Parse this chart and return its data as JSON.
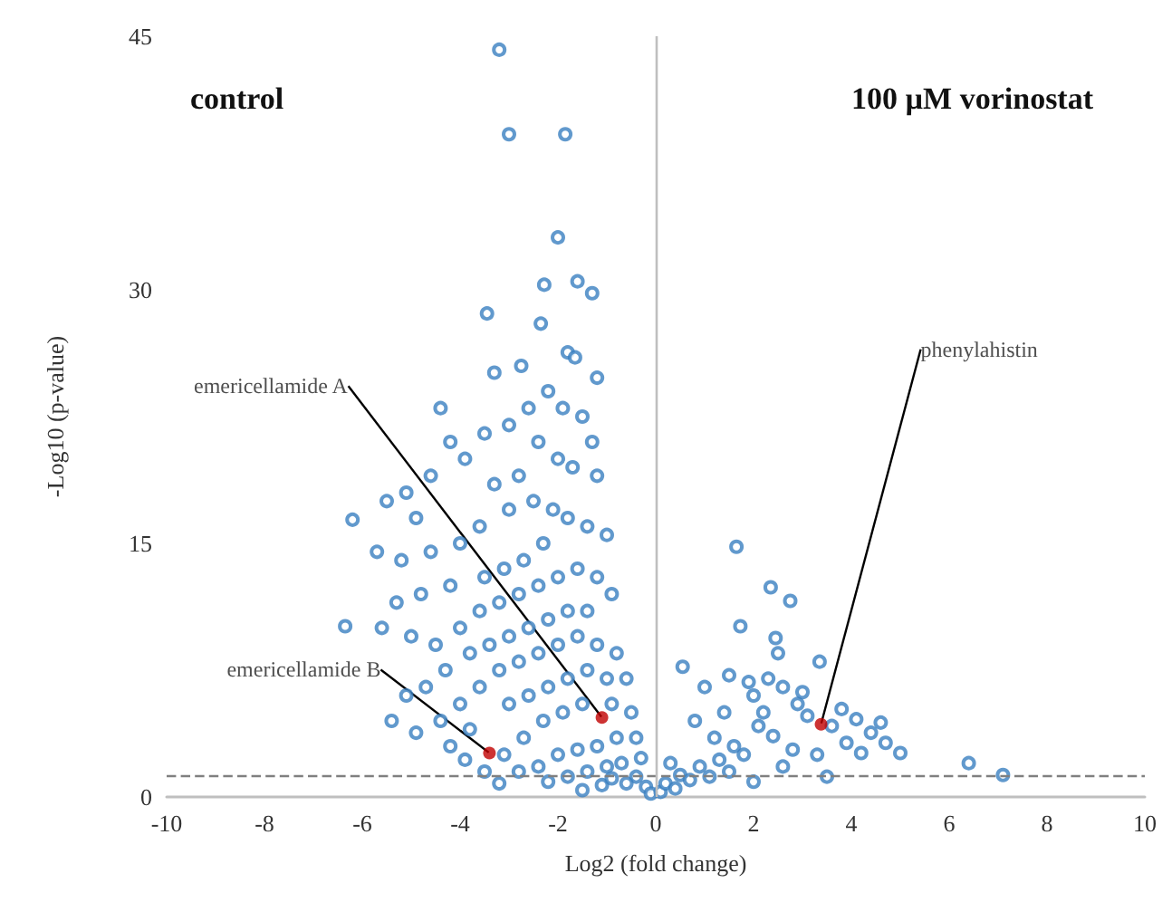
{
  "chart_data": {
    "type": "scatter",
    "xlabel": "Log2 (fold change)",
    "ylabel": "-Log10 (p-value)",
    "xlim": [
      -10,
      10
    ],
    "xticks": [
      -10,
      -8,
      -6,
      -4,
      -2,
      0,
      2,
      4,
      6,
      8,
      10
    ],
    "ylim": [
      0,
      45
    ],
    "yticks": [
      0,
      15,
      30,
      45
    ],
    "grid": false,
    "marker": "circle",
    "series": [
      {
        "color": "#3a7fc0",
        "x": [
          -3.2,
          -3.0,
          -1.85,
          -2.0,
          -2.28,
          -1.6,
          -1.3,
          -3.45,
          -2.35,
          -1.8,
          -1.65,
          -3.3,
          -2.75,
          -1.2,
          -4.4,
          -4.2,
          -3.9,
          -3.5,
          -3.0,
          -2.6,
          -2.2,
          -1.9,
          -1.5,
          -1.3,
          -2.4,
          -2.0,
          -1.7,
          -1.2,
          -2.8,
          -3.3,
          -4.6,
          -5.1,
          -5.5,
          -4.9,
          -6.2,
          -5.7,
          -5.2,
          -4.6,
          -4.0,
          -3.6,
          -3.0,
          -2.5,
          -2.1,
          -1.8,
          -1.4,
          -1.0,
          -2.3,
          -2.7,
          -3.1,
          -3.5,
          -4.2,
          -4.8,
          -5.3,
          -6.35,
          -5.6,
          -5.0,
          -4.5,
          -4.0,
          -3.6,
          -3.2,
          -2.8,
          -2.4,
          -2.0,
          -1.6,
          -1.2,
          -0.9,
          -1.4,
          -1.8,
          -2.2,
          -2.6,
          -3.0,
          -3.4,
          -3.8,
          -4.3,
          -4.7,
          -5.1,
          -5.4,
          -4.9,
          -4.4,
          -4.0,
          -3.6,
          -3.2,
          -2.8,
          -2.4,
          -2.0,
          -1.6,
          -1.2,
          -0.8,
          -0.6,
          -1.0,
          -1.4,
          -1.8,
          -2.2,
          -2.6,
          -3.0,
          -3.8,
          -4.2,
          -3.9,
          -3.5,
          -3.1,
          -2.7,
          -2.3,
          -1.9,
          -1.5,
          -0.9,
          -0.5,
          -0.4,
          -0.8,
          -1.2,
          -1.6,
          -2.0,
          -2.4,
          -2.8,
          -3.2,
          -1.8,
          -1.4,
          -1.0,
          -0.7,
          -0.4,
          -0.2,
          -0.1,
          -0.6,
          -1.1,
          -2.2,
          -0.3,
          -1.5,
          -0.9,
          0.1,
          0.2,
          0.4,
          0.5,
          0.7,
          0.9,
          1.1,
          1.3,
          1.5,
          1.6,
          1.8,
          1.65,
          2.35,
          2.75,
          1.73,
          2.45,
          2.5,
          0.55,
          3.35,
          2.0,
          2.2,
          2.6,
          2.9,
          3.1,
          3.6,
          3.8,
          4.1,
          4.4,
          4.7,
          5.0,
          4.2,
          3.9,
          3.3,
          2.8,
          2.4,
          2.1,
          1.4,
          1.0,
          0.8,
          1.2,
          0.3,
          2.6,
          3.5,
          6.4,
          7.1,
          2.0,
          1.9,
          3.0,
          4.6,
          1.5,
          2.3
        ],
        "values": [
          44.2,
          39.2,
          39.2,
          33.1,
          30.3,
          30.5,
          29.8,
          28.6,
          28.0,
          26.3,
          26.0,
          25.1,
          25.5,
          24.8,
          23.0,
          21.0,
          20.0,
          21.5,
          22.0,
          23.0,
          24.0,
          23.0,
          22.5,
          21.0,
          21.0,
          20.0,
          19.5,
          19.0,
          19.0,
          18.5,
          19.0,
          18.0,
          17.5,
          16.5,
          16.4,
          14.5,
          14.0,
          14.5,
          15.0,
          16.0,
          17.0,
          17.5,
          17.0,
          16.5,
          16.0,
          15.5,
          15.0,
          14.0,
          13.5,
          13.0,
          12.5,
          12.0,
          11.5,
          10.1,
          10.0,
          9.5,
          9.0,
          10.0,
          11.0,
          11.5,
          12.0,
          12.5,
          13.0,
          13.5,
          13.0,
          12.0,
          11.0,
          11.0,
          10.5,
          10.0,
          9.5,
          9.0,
          8.5,
          7.5,
          6.5,
          6.0,
          4.5,
          3.8,
          4.5,
          5.5,
          6.5,
          7.5,
          8.0,
          8.5,
          9.0,
          9.5,
          9.0,
          8.5,
          7.0,
          7.0,
          7.5,
          7.0,
          6.5,
          6.0,
          5.5,
          4.0,
          3.0,
          2.2,
          1.5,
          2.5,
          3.5,
          4.5,
          5.0,
          5.5,
          5.5,
          5.0,
          3.5,
          3.5,
          3.0,
          2.8,
          2.5,
          1.8,
          1.5,
          0.8,
          1.2,
          1.5,
          1.8,
          2.0,
          1.2,
          0.6,
          0.2,
          0.8,
          0.7,
          0.9,
          2.3,
          0.4,
          1.1,
          0.3,
          0.8,
          0.5,
          1.3,
          1.0,
          1.8,
          1.2,
          2.2,
          1.5,
          3.0,
          2.5,
          14.8,
          12.4,
          11.6,
          10.1,
          9.4,
          8.5,
          7.7,
          8.0,
          6.0,
          5.0,
          6.5,
          5.5,
          4.8,
          4.2,
          5.2,
          4.6,
          3.8,
          3.2,
          2.6,
          2.6,
          3.2,
          2.5,
          2.8,
          3.6,
          4.2,
          5.0,
          6.5,
          4.5,
          3.5,
          2.0,
          1.8,
          1.2,
          2.0,
          1.3,
          0.9,
          6.8,
          6.2,
          4.4,
          7.2,
          7.0
        ]
      },
      {
        "color": "#c00000",
        "x": [
          -1.1,
          -3.4,
          3.38
        ],
        "values": [
          4.7,
          2.6,
          4.3
        ]
      }
    ],
    "ref_lines": [
      {
        "axis": "y",
        "value": 1.3,
        "line_style": "dashed",
        "color": "#7f7f7f"
      },
      {
        "axis": "x",
        "value": 0,
        "line_style": "solid",
        "color": "#bfbfbf"
      }
    ],
    "annotations": [
      "control",
      "100 µM vorinostat",
      {
        "text": "emericellamide A",
        "x": -1.1,
        "y": 4.7
      },
      {
        "text": "emericellamide B",
        "x": -3.4,
        "y": 2.6
      },
      {
        "text": "phenylahistin",
        "x": 3.38,
        "y": 4.3
      }
    ]
  }
}
